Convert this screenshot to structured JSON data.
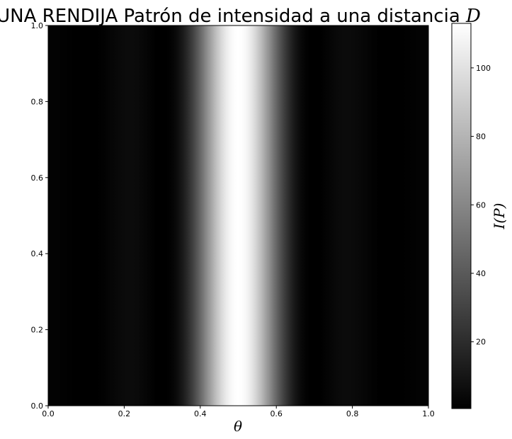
{
  "chart_data": {
    "type": "heatmap",
    "title": "UNA RENDIJA Patrón de intensidad a una distancia",
    "title_variable": "D",
    "xlabel": "θ",
    "ylabel": "",
    "colorbar_label": "I(P)",
    "colormap": "gray",
    "xlim": [
      0.0,
      1.0
    ],
    "ylim": [
      0.0,
      1.0
    ],
    "clim": [
      0.5,
      113
    ],
    "x_ticks": [
      "0.0",
      "0.2",
      "0.4",
      "0.6",
      "0.8",
      "1.0"
    ],
    "y_ticks": [
      "0.0",
      "0.2",
      "0.4",
      "0.6",
      "0.8",
      "1.0"
    ],
    "colorbar_ticks": [
      20,
      40,
      60,
      80,
      100
    ],
    "grid": false,
    "pattern": {
      "description_free_values": true,
      "peak_intensity": 113,
      "center_theta": 0.5,
      "first_minimum_offset": 0.2,
      "sidelobe_intensity": 5
    }
  }
}
